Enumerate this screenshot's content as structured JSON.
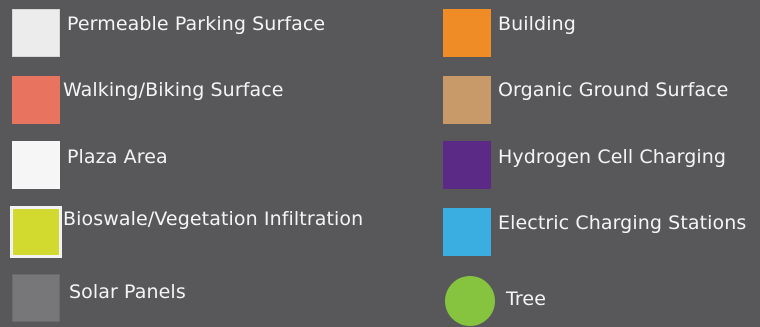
{
  "legend": {
    "left": [
      {
        "label": "Permeable Parking Surface",
        "color": "#ececec",
        "swatch": "square"
      },
      {
        "label": "Walking/Biking Surface",
        "color": "#e8735e",
        "swatch": "square"
      },
      {
        "label": "Plaza Area",
        "color": "#f6f6f6",
        "swatch": "square"
      },
      {
        "label": "Bioswale/Vegetation Infiltration",
        "color": "#d2d92f",
        "swatch": "square"
      },
      {
        "label": "Solar Panels",
        "color": "#77777a",
        "swatch": "square"
      }
    ],
    "right": [
      {
        "label": "Building",
        "color": "#f08c26",
        "swatch": "square"
      },
      {
        "label": "Organic Ground Surface",
        "color": "#c89a6a",
        "swatch": "square"
      },
      {
        "label": "Hydrogen Cell Charging",
        "color": "#5b2a86",
        "swatch": "square"
      },
      {
        "label": "Electric Charging Stations",
        "color": "#3aaee0",
        "swatch": "square"
      },
      {
        "label": "Tree",
        "color": "#86c440",
        "swatch": "circle"
      }
    ]
  }
}
